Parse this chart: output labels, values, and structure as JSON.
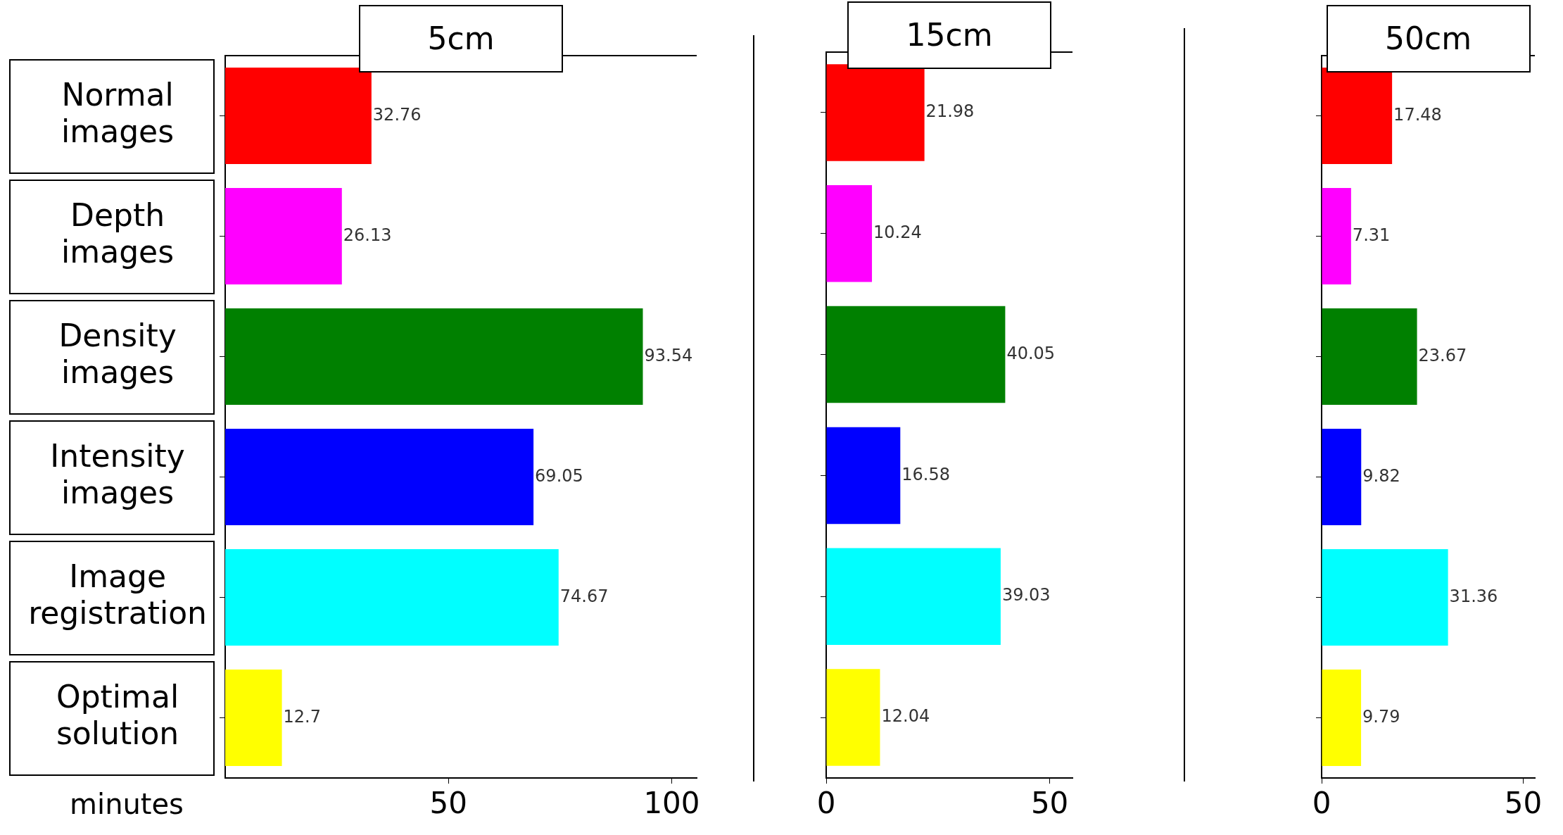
{
  "chart_data": [
    {
      "type": "bar",
      "orientation": "horizontal",
      "title": "5cm",
      "xlabel": "minutes",
      "categories": [
        "Normal images",
        "Depth images",
        "Density images",
        "Intensity images",
        "Image registration",
        "Optimal solution"
      ],
      "values": [
        32.76,
        26.13,
        93.54,
        69.05,
        74.67,
        12.7
      ],
      "colors": [
        "#ff0000",
        "#ff00ff",
        "#008000",
        "#0000ff",
        "#00ffff",
        "#ffff00"
      ],
      "xlim": [
        0,
        105.6
      ],
      "xticks": [
        50,
        100
      ],
      "data_labels": true,
      "grid": false,
      "legend": false
    },
    {
      "type": "bar",
      "orientation": "horizontal",
      "title": "15cm",
      "categories": [
        null,
        null,
        null,
        null,
        null,
        null
      ],
      "values": [
        21.98,
        10.24,
        40.05,
        16.58,
        39.03,
        12.04
      ],
      "colors": [
        "#ff0000",
        "#ff00ff",
        "#008000",
        "#0000ff",
        "#00ffff",
        "#ffff00"
      ],
      "xlim": [
        0,
        55.1
      ],
      "xticks": [
        0,
        50
      ],
      "data_labels": true,
      "grid": false,
      "legend": false,
      "tick_labels": "x"
    },
    {
      "type": "bar",
      "orientation": "horizontal",
      "title": "50cm",
      "categories": [
        null,
        null,
        null,
        null,
        null,
        null
      ],
      "values": [
        17.48,
        7.31,
        23.67,
        9.82,
        31.36,
        9.79
      ],
      "colors": [
        "#ff0000",
        "#ff00ff",
        "#008000",
        "#0000ff",
        "#00ffff",
        "#ffff00"
      ],
      "xlim": [
        0,
        52.9
      ],
      "xticks": [
        0,
        50
      ],
      "data_labels": true,
      "grid": false,
      "legend": false,
      "tick_labels": "x"
    }
  ]
}
